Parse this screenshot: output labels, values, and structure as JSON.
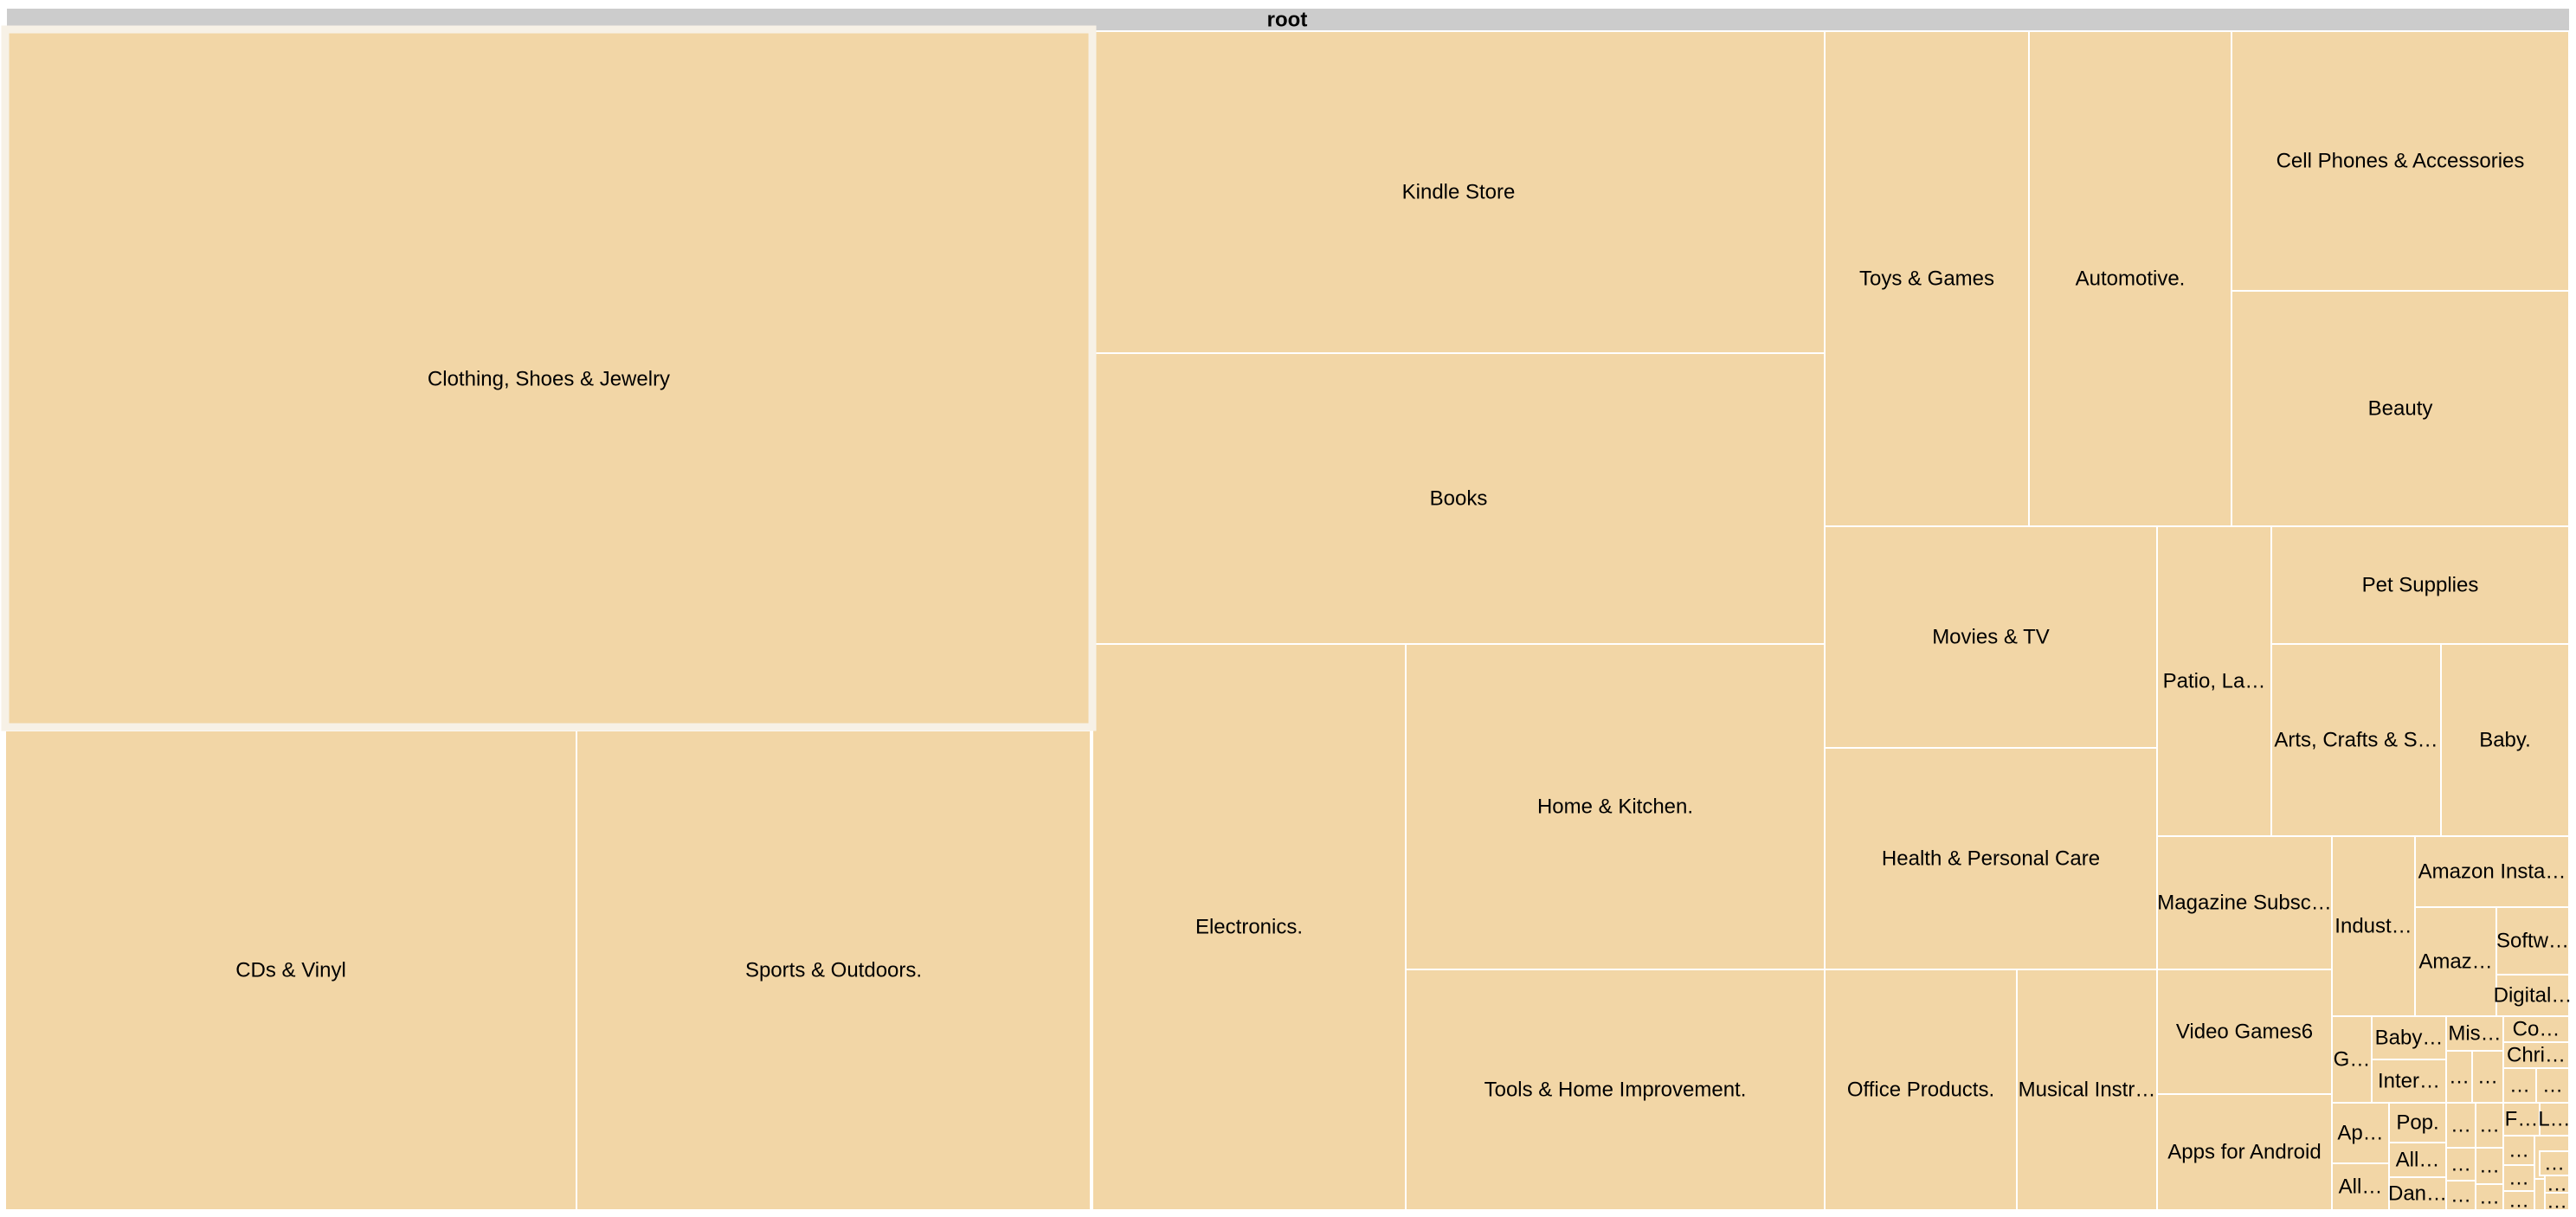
{
  "chart_data": {
    "type": "treemap",
    "root_label": "root",
    "colors": {
      "cell": "#f2d6a6",
      "root_bar": "#cccccc",
      "border": "#ffffff",
      "highlight": "#f7f1e6"
    },
    "highlighted": "Clothing, Shoes & Jewelry",
    "categories": [
      "Clothing, Shoes & Jewelry",
      "CDs & Vinyl",
      "Sports & Outdoors.",
      "Kindle Store",
      "Books",
      "Electronics.",
      "Home & Kitchen.",
      "Tools & Home Improvement.",
      "Toys & Games",
      "Automotive.",
      "Cell Phones & Accessories",
      "Beauty",
      "Movies & TV",
      "Health & Personal Care",
      "Office Products.",
      "Musical Instr…",
      "Patio, La…",
      "Pet Supplies",
      "Arts, Crafts & S…",
      "Baby.",
      "Magazine Subsc…",
      "Video Games6",
      "Apps for Android",
      "Indust…",
      "Amazon Insta…",
      "Amaz…",
      "Softw…",
      "Digital…",
      "G…",
      "Baby…",
      "Inter…",
      "Mis…",
      "Co…",
      "Chri…",
      "Ap…",
      "Pop.",
      "All…",
      "All…",
      "Dan…",
      "F…",
      "L…",
      "…",
      "…",
      "…",
      "…",
      "…",
      "…",
      "…",
      "…",
      "…",
      "…",
      "…",
      "…",
      "…",
      "…",
      "…",
      "…",
      "…",
      "…"
    ],
    "values": [
      283016,
      147504,
      133152,
      87872,
      78936,
      130240,
      100400,
      57820,
      37184,
      36552,
      31980,
      29400,
      27062,
      26666,
      15576,
      11620,
      12832,
      7272,
      7104,
      5964,
      5412,
      4662,
      4230,
      3400,
      1674,
      1316,
      1116,
      700,
      636,
      576,
      528,
      342,
      300,
      260,
      260,
      230,
      230,
      216,
      196,
      190,
      120,
      92,
      90,
      100,
      90,
      88,
      92,
      80,
      80,
      70,
      78,
      72,
      72,
      96,
      60,
      64,
      56,
      42,
      40
    ]
  }
}
